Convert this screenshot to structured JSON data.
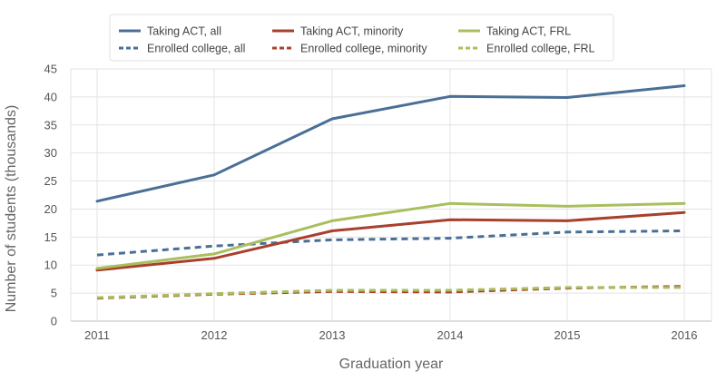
{
  "chart_data": {
    "type": "line",
    "xlabel": "Graduation year",
    "ylabel": "Number of students (thousands)",
    "x": [
      "2011",
      "2012",
      "2013",
      "2014",
      "2015",
      "2016"
    ],
    "xlim": [
      2011,
      2016
    ],
    "ylim": [
      0,
      45
    ],
    "yticks": [
      "0",
      "5",
      "10",
      "15",
      "20",
      "25",
      "30",
      "35",
      "40",
      "45"
    ],
    "grid": true,
    "legend_position": "top",
    "series": [
      {
        "name": "Taking ACT, all",
        "color": "#4a6f96",
        "style": "solid",
        "values": [
          21.4,
          26.1,
          36.1,
          40.1,
          39.9,
          42.0
        ]
      },
      {
        "name": "Taking ACT, minority",
        "color": "#a7402c",
        "style": "solid",
        "values": [
          9.1,
          11.2,
          16.1,
          18.1,
          17.9,
          19.4
        ]
      },
      {
        "name": "Taking ACT, FRL",
        "color": "#a9bf5e",
        "style": "solid",
        "values": [
          9.4,
          12.0,
          17.9,
          21.0,
          20.5,
          21.0
        ]
      },
      {
        "name": "Enrolled college, all",
        "color": "#4a6f96",
        "style": "dashed",
        "values": [
          11.8,
          13.4,
          14.5,
          14.8,
          15.9,
          16.1
        ]
      },
      {
        "name": "Enrolled college, minority",
        "color": "#a7402c",
        "style": "dashed",
        "values": [
          4.1,
          4.8,
          5.3,
          5.2,
          5.9,
          6.2
        ]
      },
      {
        "name": "Enrolled college, FRL",
        "color": "#a9bf5e",
        "style": "dashed",
        "values": [
          4.2,
          4.9,
          5.5,
          5.5,
          6.0,
          6.0
        ]
      }
    ]
  }
}
